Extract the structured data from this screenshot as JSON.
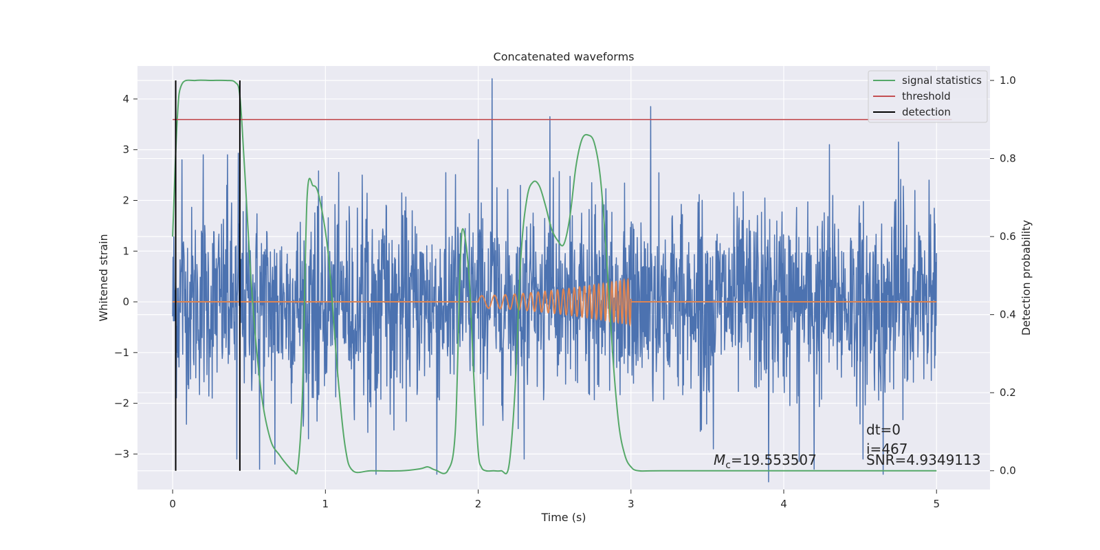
{
  "chart_data": {
    "type": "line",
    "title": "Concatenated waveforms",
    "xlabel": "Time (s)",
    "ylabel": "Whitened strain",
    "y2label": "Detection probability",
    "xlim": [
      -0.23,
      5.35
    ],
    "ylim": [
      -3.7,
      4.65
    ],
    "y2lim": [
      -0.048,
      1.037
    ],
    "xticks": [
      0,
      1,
      2,
      3,
      4,
      5
    ],
    "yticks": [
      -3,
      -2,
      -1,
      0,
      1,
      2,
      3,
      4
    ],
    "y2ticks": [
      0.0,
      0.2,
      0.4,
      0.6,
      0.8,
      1.0
    ],
    "grid": true,
    "legend_position": "top-right",
    "colors": {
      "background": "#eaeaf2",
      "grid": "#ffffff",
      "strain": "#4c72b0",
      "template": "#dd8452",
      "statistic": "#55a868",
      "threshold": "#c44e52",
      "detection": "#000000"
    },
    "series": [
      {
        "name": "signal statistics",
        "axis": "right",
        "color": "#55a868",
        "x": [
          0.0,
          0.03,
          0.06,
          0.15,
          0.25,
          0.35,
          0.41,
          0.44,
          0.47,
          0.52,
          0.58,
          0.64,
          0.7,
          0.76,
          0.79,
          0.82,
          0.85,
          0.88,
          0.92,
          0.96,
          1.02,
          1.08,
          1.13,
          1.18,
          1.3,
          1.5,
          1.62,
          1.67,
          1.72,
          1.8,
          1.85,
          1.88,
          1.9,
          1.94,
          1.97,
          2.0,
          2.02,
          2.05,
          2.1,
          2.15,
          2.2,
          2.24,
          2.28,
          2.32,
          2.36,
          2.4,
          2.44,
          2.48,
          2.52,
          2.56,
          2.6,
          2.64,
          2.68,
          2.72,
          2.76,
          2.8,
          2.84,
          2.88,
          2.92,
          2.96,
          3.0,
          3.05,
          3.2,
          4.0,
          5.0
        ],
        "y": [
          0.6,
          0.9,
          0.99,
          1.0,
          1.0,
          1.0,
          0.995,
          0.96,
          0.78,
          0.45,
          0.2,
          0.08,
          0.04,
          0.01,
          0.0,
          0.01,
          0.2,
          0.7,
          0.73,
          0.7,
          0.55,
          0.25,
          0.06,
          0.0,
          0.0,
          0.0,
          0.005,
          0.01,
          0.002,
          0.0,
          0.1,
          0.5,
          0.62,
          0.5,
          0.25,
          0.05,
          0.01,
          0.0,
          0.0,
          0.0,
          0.01,
          0.2,
          0.55,
          0.7,
          0.74,
          0.73,
          0.68,
          0.62,
          0.59,
          0.58,
          0.65,
          0.78,
          0.85,
          0.86,
          0.84,
          0.75,
          0.55,
          0.3,
          0.12,
          0.04,
          0.01,
          0.0,
          0.0,
          0.0,
          0.0
        ]
      },
      {
        "name": "threshold",
        "axis": "right",
        "color": "#c44e52",
        "x": [
          0.0,
          5.1
        ],
        "y": [
          0.9,
          0.9
        ]
      },
      {
        "name": "detection",
        "axis": "right",
        "color": "#000000",
        "x": [
          0.02,
          0.44
        ],
        "y": [
          1.0,
          1.0
        ]
      }
    ],
    "strain": {
      "x_range": [
        0.0,
        5.0
      ],
      "samples": 2048,
      "noise_sigma": 0.92,
      "spikes": [
        {
          "x": 0.06,
          "y": 2.8
        },
        {
          "x": 0.2,
          "y": 2.9
        },
        {
          "x": 0.36,
          "y": 2.9
        },
        {
          "x": 0.43,
          "y": 2.93
        },
        {
          "x": 0.57,
          "y": -3.3
        },
        {
          "x": 0.42,
          "y": -3.1
        },
        {
          "x": 0.67,
          "y": -3.2
        },
        {
          "x": 0.89,
          "y": -2.7
        },
        {
          "x": 1.33,
          "y": -3.4
        },
        {
          "x": 1.73,
          "y": -3.4
        },
        {
          "x": 2.09,
          "y": 4.4
        },
        {
          "x": 2.0,
          "y": 3.2
        },
        {
          "x": 2.47,
          "y": 3.65
        },
        {
          "x": 2.3,
          "y": -3.1
        },
        {
          "x": 3.13,
          "y": 3.85
        },
        {
          "x": 3.54,
          "y": -2.9
        },
        {
          "x": 3.9,
          "y": -3.55
        },
        {
          "x": 4.1,
          "y": -3.15
        },
        {
          "x": 4.2,
          "y": -3.3
        },
        {
          "x": 4.52,
          "y": -3.1
        },
        {
          "x": 4.65,
          "y": -3.4
        },
        {
          "x": 4.75,
          "y": 3.15
        },
        {
          "x": 4.3,
          "y": 3.1
        },
        {
          "x": 4.95,
          "y": 2.4
        }
      ]
    },
    "template": {
      "x_range": [
        0.0,
        5.0
      ],
      "chirp_start": 2.0,
      "chirp_end": 3.0,
      "amp_start": 0.12,
      "amp_end": 0.45,
      "f_start": 10,
      "f_end": 40
    },
    "legend": [
      {
        "label": "signal statistics",
        "color": "#55a868"
      },
      {
        "label": "threshold",
        "color": "#c44e52"
      },
      {
        "label": "detection",
        "color": "#000000"
      }
    ],
    "annotations": {
      "mc_symbol": "M",
      "mc_sub": "c",
      "mc_value": "=19.553507",
      "dt": "dt=0",
      "i": "i=467",
      "snr": "SNR=4.9349113"
    }
  }
}
